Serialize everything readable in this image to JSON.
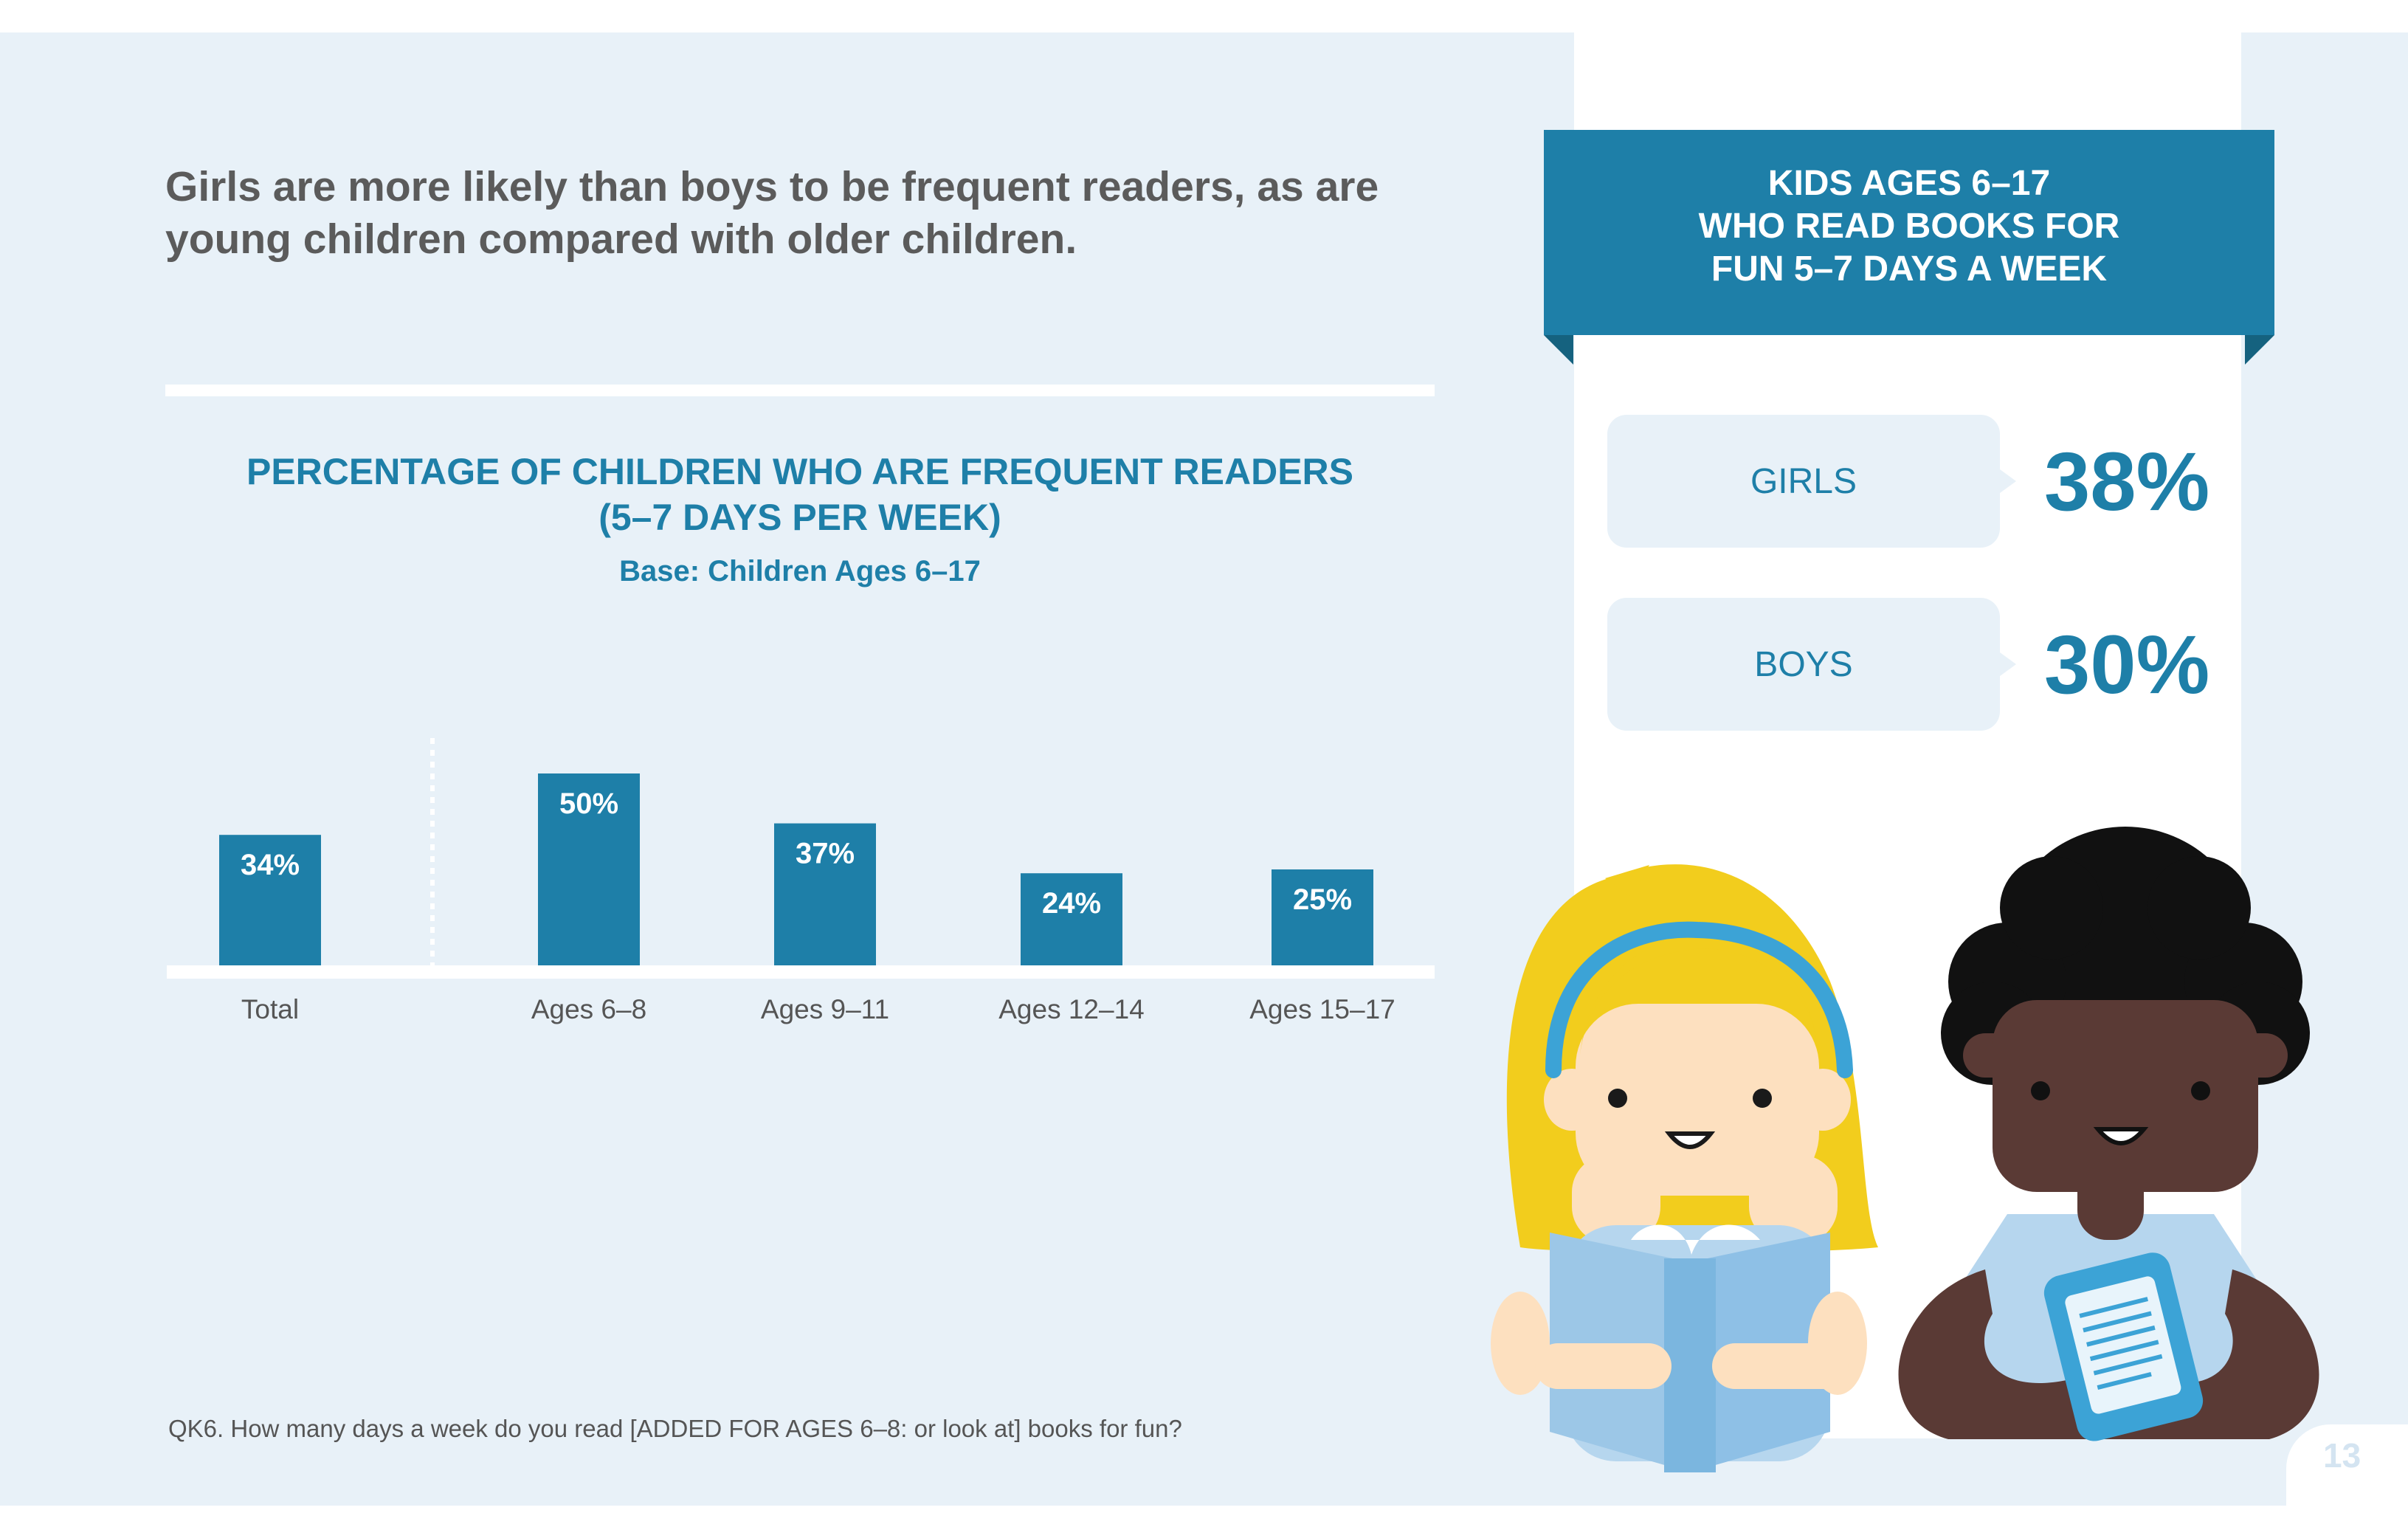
{
  "headline": {
    "line1": "Girls are more likely than boys to be frequent readers, as are",
    "line2": "young children compared with older children."
  },
  "chart_data": {
    "type": "bar",
    "title_line1": "PERCENTAGE OF CHILDREN WHO ARE FREQUENT READERS",
    "title_line2": "(5–7 DAYS PER WEEK)",
    "subtitle": "Base: Children Ages 6–17",
    "categories": [
      "Total",
      "Ages 6–8",
      "Ages 9–11",
      "Ages 12–14",
      "Ages 15–17"
    ],
    "values": [
      34,
      50,
      37,
      24,
      25
    ],
    "value_labels": [
      "34%",
      "50%",
      "37%",
      "24%",
      "25%"
    ],
    "bar_color": "#1e7fa8",
    "grid": false
  },
  "footnote": "QK6. How many days a week do you read [ADDED FOR AGES 6–8: or look at] books for fun?",
  "callout": {
    "title_line1": "KIDS AGES 6–17",
    "title_line2": "WHO READ BOOKS FOR",
    "title_line3": "FUN 5–7 DAYS A WEEK",
    "stats": [
      {
        "label": "GIRLS",
        "value": "38%"
      },
      {
        "label": "BOYS",
        "value": "30%"
      }
    ]
  },
  "illustration": {
    "girl": "girl-reading-book-illustration",
    "boy": "boy-reading-ereader-illustration"
  },
  "page_number": "13",
  "colors": {
    "accent": "#1e7fa8",
    "background": "#e8f1f8",
    "headline_text": "#5b5b5b"
  }
}
